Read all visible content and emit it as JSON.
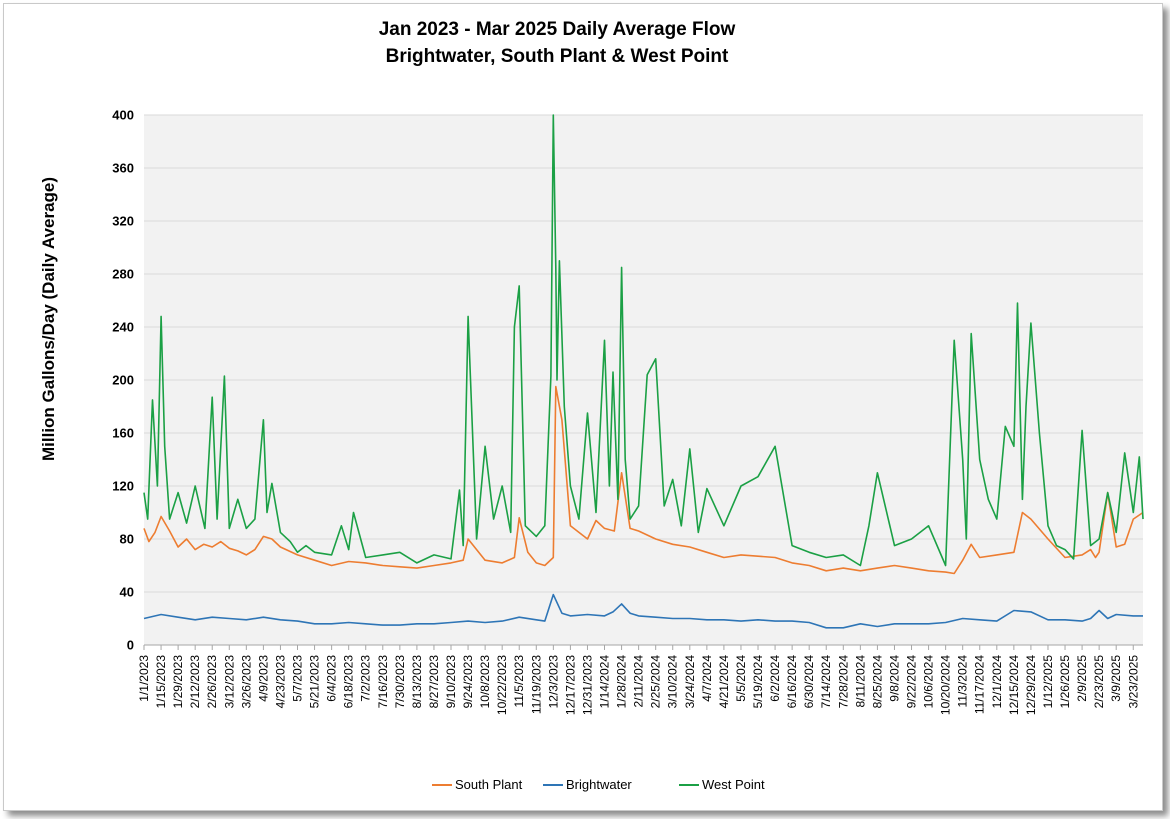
{
  "chart_data": {
    "type": "line",
    "title": "Jan 2023 - Mar 2025 Daily Average Flow",
    "subtitle": "Brightwater, South Plant & West Point",
    "xlabel": "",
    "ylabel": "Million Gallons/Day (Daily Average)",
    "ylim": [
      0,
      400
    ],
    "yticks": [
      0,
      40,
      80,
      120,
      160,
      200,
      240,
      280,
      320,
      360,
      400
    ],
    "xlim": [
      "1/1/2023",
      "3/31/2025"
    ],
    "x_tick_labels": [
      "1/1/2023",
      "1/15/2023",
      "1/29/2023",
      "2/12/2023",
      "2/26/2023",
      "3/12/2023",
      "3/26/2023",
      "4/9/2023",
      "4/23/2023",
      "5/7/2023",
      "5/21/2023",
      "6/4/2023",
      "6/18/2023",
      "7/2/2023",
      "7/16/2023",
      "7/30/2023",
      "8/13/2023",
      "8/27/2023",
      "9/10/2023",
      "9/24/2023",
      "10/8/2023",
      "10/22/2023",
      "11/5/2023",
      "11/19/2023",
      "12/3/2023",
      "12/17/2023",
      "12/31/2023",
      "1/14/2024",
      "1/28/2024",
      "2/11/2024",
      "2/25/2024",
      "3/10/2024",
      "3/24/2024",
      "4/7/2024",
      "4/21/2024",
      "5/5/2024",
      "5/19/2024",
      "6/2/2024",
      "6/16/2024",
      "6/30/2024",
      "7/14/2024",
      "7/28/2024",
      "8/11/2024",
      "8/25/2024",
      "9/8/2024",
      "9/22/2024",
      "10/6/2024",
      "10/20/2024",
      "11/3/2024",
      "11/17/2024",
      "12/1/2024",
      "12/15/2024",
      "12/29/2024",
      "1/12/2025",
      "1/26/2025",
      "2/9/2025",
      "2/23/2025",
      "3/9/2025",
      "3/23/2025"
    ],
    "grid": true,
    "legend_position": "bottom",
    "colors": {
      "plot_bg": "#f2f2f2",
      "grid": "#d9d9d9"
    },
    "series": [
      {
        "name": "South Plant",
        "color": "#ed7d31",
        "x": [
          "1/1/2023",
          "1/5/2023",
          "1/10/2023",
          "1/15/2023",
          "1/22/2023",
          "1/29/2023",
          "2/5/2023",
          "2/12/2023",
          "2/19/2023",
          "2/26/2023",
          "3/5/2023",
          "3/12/2023",
          "3/19/2023",
          "3/26/2023",
          "4/2/2023",
          "4/9/2023",
          "4/16/2023",
          "4/23/2023",
          "5/7/2023",
          "5/21/2023",
          "6/4/2023",
          "6/18/2023",
          "7/2/2023",
          "7/16/2023",
          "7/30/2023",
          "8/13/2023",
          "8/27/2023",
          "9/10/2023",
          "9/20/2023",
          "9/24/2023",
          "10/8/2023",
          "10/22/2023",
          "11/1/2023",
          "11/5/2023",
          "11/12/2023",
          "11/19/2023",
          "11/26/2023",
          "12/3/2023",
          "12/5/2023",
          "12/10/2023",
          "12/17/2023",
          "12/31/2023",
          "1/7/2024",
          "1/14/2024",
          "1/22/2024",
          "1/28/2024",
          "2/4/2024",
          "2/11/2024",
          "2/25/2024",
          "3/10/2024",
          "3/24/2024",
          "4/7/2024",
          "4/21/2024",
          "5/5/2024",
          "5/19/2024",
          "6/2/2024",
          "6/16/2024",
          "6/30/2024",
          "7/14/2024",
          "7/28/2024",
          "8/11/2024",
          "8/25/2024",
          "9/8/2024",
          "9/22/2024",
          "10/6/2024",
          "10/20/2024",
          "10/27/2024",
          "11/3/2024",
          "11/10/2024",
          "11/17/2024",
          "12/1/2024",
          "12/15/2024",
          "12/22/2024",
          "12/29/2024",
          "1/12/2025",
          "1/26/2025",
          "2/9/2025",
          "2/16/2025",
          "2/20/2025",
          "2/23/2025",
          "3/2/2025",
          "3/9/2025",
          "3/16/2025",
          "3/23/2025",
          "3/31/2025"
        ],
        "values": [
          88,
          78,
          85,
          97,
          86,
          74,
          80,
          72,
          76,
          74,
          78,
          73,
          71,
          68,
          72,
          82,
          80,
          74,
          68,
          64,
          60,
          63,
          62,
          60,
          59,
          58,
          60,
          62,
          64,
          80,
          64,
          62,
          66,
          96,
          70,
          62,
          60,
          66,
          195,
          170,
          90,
          80,
          94,
          88,
          86,
          130,
          88,
          86,
          80,
          76,
          74,
          70,
          66,
          68,
          67,
          66,
          62,
          60,
          56,
          58,
          56,
          58,
          60,
          58,
          56,
          55,
          54,
          64,
          76,
          66,
          68,
          70,
          100,
          95,
          80,
          66,
          68,
          72,
          66,
          70,
          115,
          74,
          76,
          95,
          100
        ]
      },
      {
        "name": "Brightwater",
        "color": "#2e75b6",
        "x": [
          "1/1/2023",
          "1/15/2023",
          "1/29/2023",
          "2/12/2023",
          "2/26/2023",
          "3/12/2023",
          "3/26/2023",
          "4/9/2023",
          "4/23/2023",
          "5/7/2023",
          "5/21/2023",
          "6/4/2023",
          "6/18/2023",
          "7/2/2023",
          "7/16/2023",
          "7/30/2023",
          "8/13/2023",
          "8/27/2023",
          "9/10/2023",
          "9/24/2023",
          "10/8/2023",
          "10/22/2023",
          "11/5/2023",
          "11/19/2023",
          "11/26/2023",
          "12/3/2023",
          "12/10/2023",
          "12/17/2023",
          "12/31/2023",
          "1/14/2024",
          "1/21/2024",
          "1/28/2024",
          "2/4/2024",
          "2/11/2024",
          "2/25/2024",
          "3/10/2024",
          "3/24/2024",
          "4/7/2024",
          "4/21/2024",
          "5/5/2024",
          "5/19/2024",
          "6/2/2024",
          "6/16/2024",
          "6/30/2024",
          "7/14/2024",
          "7/28/2024",
          "8/11/2024",
          "8/25/2024",
          "9/8/2024",
          "9/22/2024",
          "10/6/2024",
          "10/20/2024",
          "11/3/2024",
          "11/17/2024",
          "12/1/2024",
          "12/15/2024",
          "12/29/2024",
          "1/12/2025",
          "1/26/2025",
          "2/9/2025",
          "2/16/2025",
          "2/23/2025",
          "3/2/2025",
          "3/9/2025",
          "3/23/2025",
          "3/31/2025"
        ],
        "values": [
          20,
          23,
          21,
          19,
          21,
          20,
          19,
          21,
          19,
          18,
          16,
          16,
          17,
          16,
          15,
          15,
          16,
          16,
          17,
          18,
          17,
          18,
          21,
          19,
          18,
          38,
          24,
          22,
          23,
          22,
          25,
          31,
          24,
          22,
          21,
          20,
          20,
          19,
          19,
          18,
          19,
          18,
          18,
          17,
          13,
          13,
          16,
          14,
          16,
          16,
          16,
          17,
          20,
          19,
          18,
          26,
          25,
          19,
          19,
          18,
          20,
          26,
          20,
          23,
          22,
          22
        ]
      },
      {
        "name": "West Point",
        "color": "#1ba045",
        "x": [
          "1/1/2023",
          "1/4/2023",
          "1/8/2023",
          "1/12/2023",
          "1/15/2023",
          "1/18/2023",
          "1/22/2023",
          "1/29/2023",
          "2/5/2023",
          "2/12/2023",
          "2/20/2023",
          "2/26/2023",
          "3/2/2023",
          "3/8/2023",
          "3/12/2023",
          "3/19/2023",
          "3/26/2023",
          "4/2/2023",
          "4/9/2023",
          "4/12/2023",
          "4/16/2023",
          "4/23/2023",
          "5/1/2023",
          "5/7/2023",
          "5/14/2023",
          "5/21/2023",
          "6/4/2023",
          "6/12/2023",
          "6/18/2023",
          "6/22/2023",
          "7/2/2023",
          "7/16/2023",
          "7/30/2023",
          "8/13/2023",
          "8/27/2023",
          "9/10/2023",
          "9/17/2023",
          "9/20/2023",
          "9/24/2023",
          "10/1/2023",
          "10/8/2023",
          "10/15/2023",
          "10/22/2023",
          "10/29/2023",
          "11/1/2023",
          "11/5/2023",
          "11/10/2023",
          "11/19/2023",
          "11/26/2023",
          "12/1/2023",
          "12/3/2023",
          "12/5/2023",
          "12/6/2023",
          "12/8/2023",
          "12/12/2023",
          "12/17/2023",
          "12/24/2023",
          "12/31/2023",
          "1/7/2024",
          "1/14/2024",
          "1/18/2024",
          "1/21/2024",
          "1/25/2024",
          "1/28/2024",
          "1/31/2024",
          "2/4/2024",
          "2/11/2024",
          "2/18/2024",
          "2/25/2024",
          "3/3/2024",
          "3/10/2024",
          "3/17/2024",
          "3/24/2024",
          "3/31/2024",
          "4/7/2024",
          "4/21/2024",
          "5/5/2024",
          "5/19/2024",
          "6/2/2024",
          "6/16/2024",
          "6/30/2024",
          "7/14/2024",
          "7/28/2024",
          "8/11/2024",
          "8/18/2024",
          "8/25/2024",
          "9/8/2024",
          "9/22/2024",
          "10/6/2024",
          "10/20/2024",
          "10/27/2024",
          "11/3/2024",
          "11/6/2024",
          "11/10/2024",
          "11/17/2024",
          "11/24/2024",
          "12/1/2024",
          "12/8/2024",
          "12/15/2024",
          "12/18/2024",
          "12/22/2024",
          "12/25/2024",
          "12/29/2024",
          "1/5/2025",
          "1/12/2025",
          "1/19/2025",
          "1/26/2025",
          "2/2/2025",
          "2/9/2025",
          "2/16/2025",
          "2/23/2025",
          "3/2/2025",
          "3/9/2025",
          "3/16/2025",
          "3/23/2025",
          "3/28/2025",
          "3/31/2025"
        ],
        "values": [
          115,
          95,
          185,
          120,
          248,
          150,
          95,
          115,
          92,
          120,
          88,
          187,
          95,
          203,
          88,
          110,
          88,
          95,
          170,
          100,
          122,
          85,
          78,
          70,
          75,
          70,
          68,
          90,
          72,
          100,
          66,
          68,
          70,
          62,
          68,
          65,
          117,
          75,
          248,
          80,
          150,
          95,
          120,
          85,
          240,
          271,
          90,
          82,
          90,
          203,
          400,
          285,
          200,
          290,
          180,
          120,
          95,
          175,
          100,
          230,
          120,
          206,
          110,
          285,
          140,
          95,
          105,
          204,
          216,
          105,
          125,
          90,
          148,
          85,
          118,
          90,
          120,
          127,
          150,
          75,
          70,
          66,
          68,
          60,
          90,
          130,
          75,
          80,
          90,
          60,
          230,
          140,
          80,
          235,
          140,
          110,
          95,
          165,
          150,
          258,
          110,
          180,
          243,
          160,
          90,
          75,
          72,
          65,
          162,
          75,
          80,
          115,
          85,
          145,
          100,
          142,
          95
        ]
      }
    ]
  }
}
